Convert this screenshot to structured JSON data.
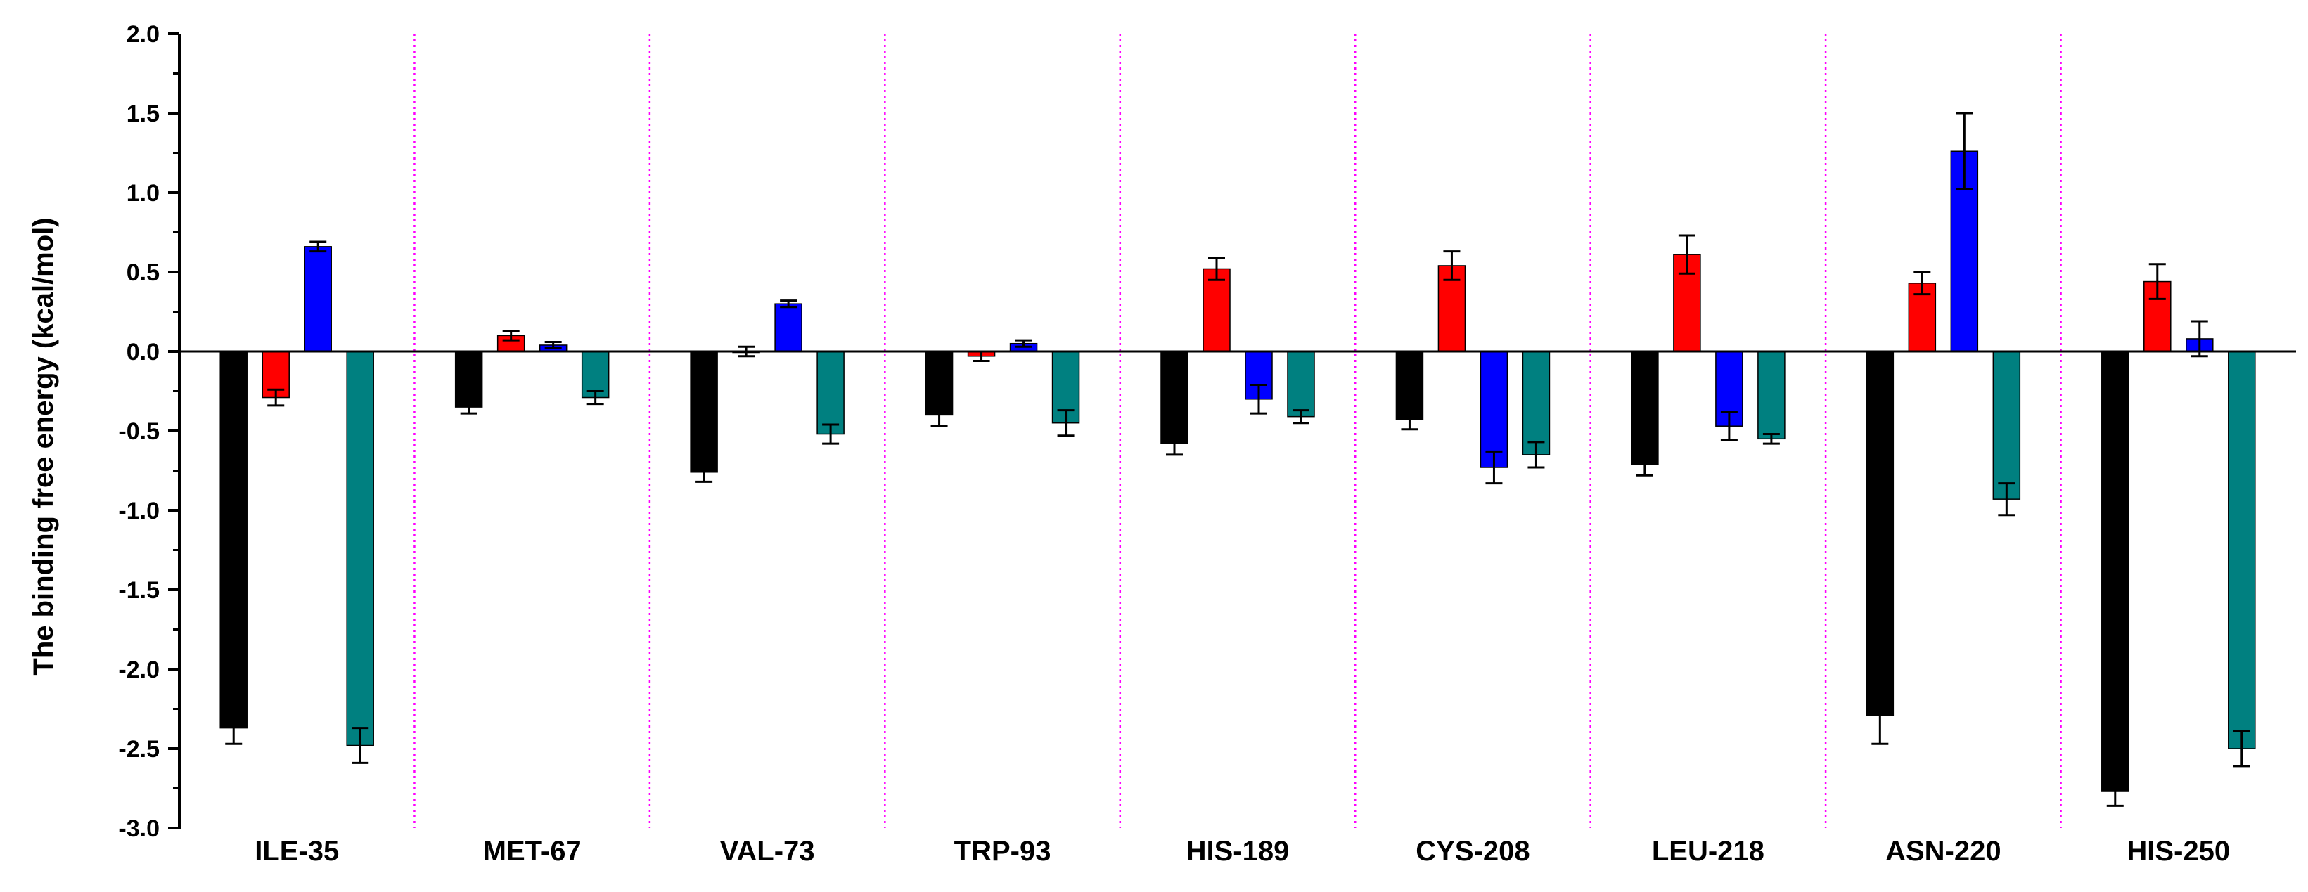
{
  "chart_data": {
    "type": "bar",
    "title": "",
    "xlabel": "",
    "ylabel": "The binding free energy (kcal/mol)",
    "ylim": [
      -3.0,
      2.0
    ],
    "yticks": [
      "2.0",
      "1.5",
      "1.0",
      "0.5",
      "0.0",
      "-0.5",
      "-1.0",
      "-1.5",
      "-2.0",
      "-2.5",
      "-3.0"
    ],
    "categories": [
      "ILE-35",
      "MET-67",
      "VAL-73",
      "TRP-93",
      "HIS-189",
      "CYS-208",
      "LEU-218",
      "ASN-220",
      "HIS-250"
    ],
    "series": [
      {
        "color": "#000000",
        "values": [
          -2.37,
          -0.35,
          -0.76,
          -0.4,
          -0.58,
          -0.43,
          -0.71,
          -2.29,
          -2.77
        ],
        "errors": [
          0.1,
          0.04,
          0.06,
          0.07,
          0.07,
          0.06,
          0.07,
          0.18,
          0.09
        ]
      },
      {
        "color": "#ff0000",
        "values": [
          -0.29,
          0.1,
          0.0,
          -0.03,
          0.52,
          0.54,
          0.61,
          0.43,
          0.44
        ],
        "errors": [
          0.05,
          0.03,
          0.03,
          0.03,
          0.07,
          0.09,
          0.12,
          0.07,
          0.11
        ]
      },
      {
        "color": "#0000ff",
        "values": [
          0.66,
          0.04,
          0.3,
          0.05,
          -0.3,
          -0.73,
          -0.47,
          1.26,
          0.08
        ],
        "errors": [
          0.03,
          0.02,
          0.02,
          0.02,
          0.09,
          0.1,
          0.09,
          0.24,
          0.11
        ]
      },
      {
        "color": "#008080",
        "values": [
          -2.48,
          -0.29,
          -0.52,
          -0.45,
          -0.41,
          -0.65,
          -0.55,
          -0.93,
          -2.5
        ],
        "errors": [
          0.11,
          0.04,
          0.06,
          0.08,
          0.04,
          0.08,
          0.03,
          0.1,
          0.11
        ]
      }
    ],
    "separator_color": "#ff00ff",
    "grid": false,
    "legend": "none"
  }
}
